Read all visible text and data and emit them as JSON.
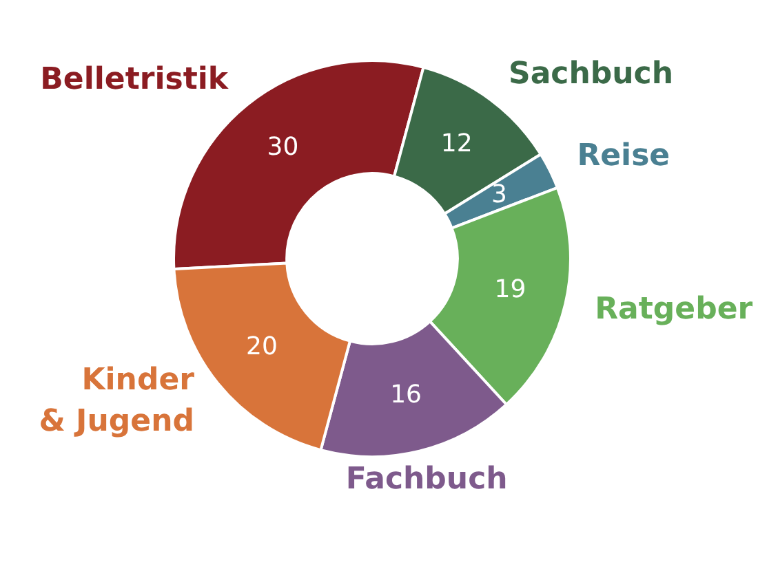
{
  "chart_data": {
    "type": "donut",
    "categories": [
      "Belletristik",
      "Sachbuch",
      "Reise",
      "Ratgeber",
      "Fachbuch",
      "Kinder\n& Jugend"
    ],
    "values": [
      30,
      12,
      3,
      19,
      16,
      20
    ],
    "colors": [
      "#8b1c22",
      "#3b6a48",
      "#4a8092",
      "#68b05a",
      "#7e5a8c",
      "#d8743a"
    ],
    "data_labels": true
  }
}
